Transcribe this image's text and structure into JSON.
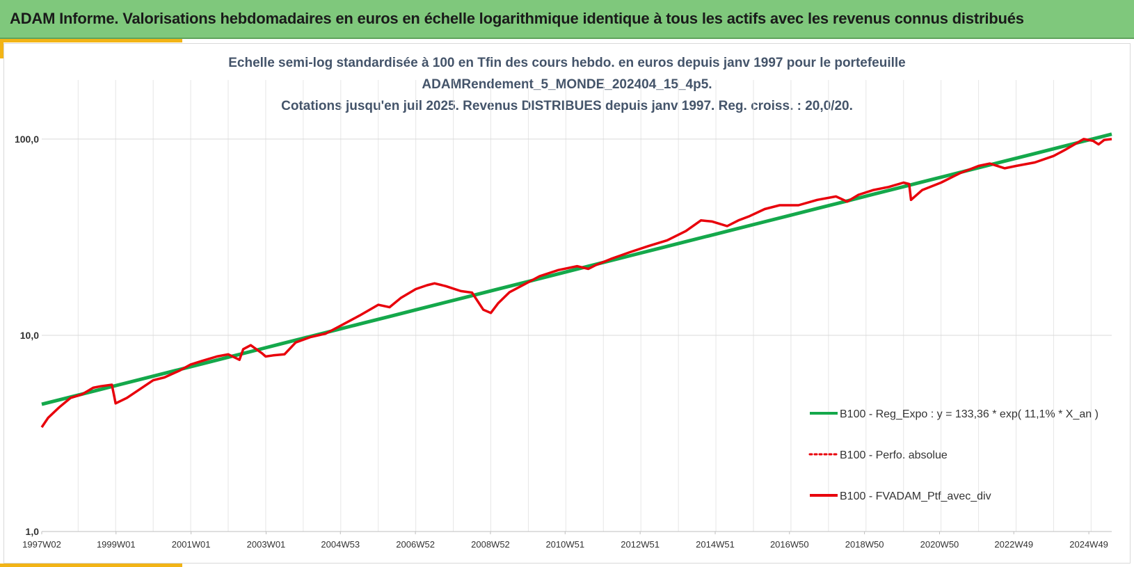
{
  "banner": {
    "title": "ADAM Informe. Valorisations hebdomadaires en euros en échelle logarithmique identique à tous les actifs avec les revenus connus distribués"
  },
  "colors": {
    "banner": "#7fc87c",
    "accent": "#f2b416",
    "regression": "#14a84b",
    "portfolio": "#e8000b",
    "title_text": "#44546a"
  },
  "chart_data": {
    "type": "line",
    "title_lines": [
      "Echelle semi-log standardisée à 100 en Tfin des cours hebdo. en euros depuis janv 1997 pour le portefeuille",
      "ADAMRendement_5_MONDE_202404_15_4p5.",
      "Cotations jusqu'en juil 2025. Revenus DISTRIBUES depuis janv 1997. Reg. croiss. : 20,0/20."
    ],
    "y_scale": "log",
    "ylim": [
      1,
      200
    ],
    "y_ticks": [
      {
        "value": 1,
        "label": "1,0"
      },
      {
        "value": 10,
        "label": "10,0"
      },
      {
        "value": 100,
        "label": "100,0"
      }
    ],
    "xlim": [
      1997.03,
      2025.55
    ],
    "x_ticks": [
      {
        "value": 1997.03,
        "label": "1997W02"
      },
      {
        "value": 1999.01,
        "label": "1999W01"
      },
      {
        "value": 2001.01,
        "label": "2001W01"
      },
      {
        "value": 2003.01,
        "label": "2003W01"
      },
      {
        "value": 2004.99,
        "label": "2004W53"
      },
      {
        "value": 2006.99,
        "label": "2006W52"
      },
      {
        "value": 2008.99,
        "label": "2008W52"
      },
      {
        "value": 2010.98,
        "label": "2010W51"
      },
      {
        "value": 2012.98,
        "label": "2012W51"
      },
      {
        "value": 2014.98,
        "label": "2014W51"
      },
      {
        "value": 2016.96,
        "label": "2016W50"
      },
      {
        "value": 2018.96,
        "label": "2018W50"
      },
      {
        "value": 2020.96,
        "label": "2020W50"
      },
      {
        "value": 2022.94,
        "label": "2022W49"
      },
      {
        "value": 2024.94,
        "label": "2024W49"
      }
    ],
    "grid": true,
    "legend_position": "bottom-right",
    "legend": [
      {
        "label": "B100 - Reg_Expo : y = 133,36 * exp( 11,1% *  X_an )",
        "color": "#14a84b",
        "style": "solid"
      },
      {
        "label": "B100 - Perfo. absolue",
        "color": "#e8000b",
        "style": "dotted"
      },
      {
        "label": "B100 - FVADAM_Ptf_avec_div",
        "color": "#e8000b",
        "style": "solid"
      }
    ],
    "series": [
      {
        "name": "B100 - Reg_Expo : y = 133,36 * exp( 11,1% *  X_an )",
        "color": "#14a84b",
        "x": [
          1997.03,
          2025.55
        ],
        "y": [
          4.45,
          106
        ]
      },
      {
        "name": "B100 - FVADAM_Ptf_avec_div",
        "color": "#e8000b",
        "x": [
          1997.03,
          1997.2,
          1997.5,
          1997.8,
          1998.1,
          1998.4,
          1998.6,
          1998.9,
          1999.0,
          1999.3,
          1999.7,
          2000.0,
          2000.3,
          2000.7,
          2001.0,
          2001.3,
          2001.7,
          2002.0,
          2002.3,
          2002.4,
          2002.6,
          2002.9,
          2003.0,
          2003.2,
          2003.5,
          2003.8,
          2004.2,
          2004.6,
          2005.0,
          2005.5,
          2006.0,
          2006.3,
          2006.6,
          2007.0,
          2007.3,
          2007.5,
          2007.8,
          2008.2,
          2008.5,
          2008.8,
          2009.0,
          2009.2,
          2009.5,
          2009.9,
          2010.3,
          2010.8,
          2011.3,
          2011.6,
          2011.8,
          2012.2,
          2012.7,
          2013.2,
          2013.7,
          2014.2,
          2014.6,
          2014.9,
          2015.3,
          2015.6,
          2015.9,
          2016.3,
          2016.7,
          2017.2,
          2017.7,
          2018.2,
          2018.5,
          2018.8,
          2019.2,
          2019.6,
          2020.0,
          2020.15,
          2020.2,
          2020.5,
          2021.0,
          2021.5,
          2022.0,
          2022.3,
          2022.7,
          2023.0,
          2023.5,
          2024.0,
          2024.3,
          2024.6,
          2024.8,
          2025.05,
          2025.2,
          2025.35,
          2025.55
        ],
        "y": [
          3.4,
          3.8,
          4.3,
          4.8,
          5.0,
          5.4,
          5.5,
          5.6,
          4.5,
          4.8,
          5.4,
          5.9,
          6.1,
          6.6,
          7.1,
          7.4,
          7.8,
          8.0,
          7.5,
          8.5,
          8.9,
          8.1,
          7.8,
          7.9,
          8.0,
          9.2,
          9.8,
          10.2,
          11.2,
          12.6,
          14.3,
          13.9,
          15.5,
          17.2,
          18.0,
          18.4,
          17.8,
          16.8,
          16.5,
          13.5,
          13.0,
          14.6,
          16.6,
          18.2,
          20.0,
          21.5,
          22.5,
          21.8,
          22.8,
          24.5,
          26.5,
          28.5,
          30.5,
          34.0,
          38.5,
          38.0,
          36.0,
          38.5,
          40.5,
          44.0,
          46.0,
          46.0,
          49.0,
          51.0,
          48.0,
          52.0,
          55.0,
          57.0,
          60.0,
          59.0,
          49.0,
          55.0,
          60.0,
          67.0,
          73.0,
          75.0,
          71.0,
          73.0,
          76.0,
          82.0,
          88.0,
          95.0,
          100.0,
          98.0,
          94.0,
          99.0,
          100.0
        ]
      }
    ]
  }
}
